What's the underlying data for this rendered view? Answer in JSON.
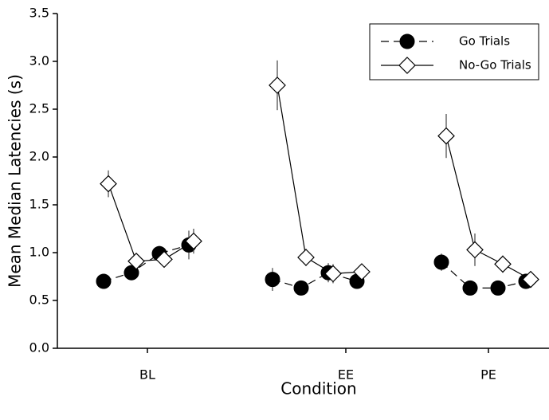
{
  "chart_data": {
    "type": "line",
    "x_label": "Condition",
    "y_label": "Mean Median Latencies (s)",
    "categories": [
      "BL",
      "EE",
      "PE"
    ],
    "ylim": [
      0,
      3.5
    ],
    "yticks": [
      {
        "value": 0,
        "label": "0.0"
      },
      {
        "value": 0.5,
        "label": "0.5"
      },
      {
        "value": 1,
        "label": "1.0"
      },
      {
        "value": 1.5,
        "label": "1.5"
      },
      {
        "value": 2,
        "label": "2.0"
      },
      {
        "value": 2.5,
        "label": "2.5"
      },
      {
        "value": 3,
        "label": "3.0"
      },
      {
        "value": 3.5,
        "label": "3.5"
      }
    ],
    "legend": "upper right",
    "series": [
      {
        "name": "Go Trials",
        "color": "#000000",
        "marker": "circle",
        "dash": true,
        "values": [
          [
            0.7,
            0.79,
            0.99,
            1.08
          ],
          [
            0.72,
            0.63,
            0.79,
            0.7
          ],
          [
            0.9,
            0.63,
            0.63,
            0.7
          ]
        ],
        "errors": [
          [
            0.07,
            0.05,
            0.08,
            0.15
          ],
          [
            0.12,
            0.04,
            0.1,
            0.04
          ],
          [
            0.09,
            0.06,
            0.06,
            0.08
          ]
        ]
      },
      {
        "name": "No-Go Trials",
        "color": "#000000",
        "marker": "diamond",
        "dash": false,
        "values": [
          [
            1.72,
            0.91,
            0.93,
            1.12
          ],
          [
            2.75,
            0.95,
            0.78,
            0.8
          ],
          [
            2.22,
            1.03,
            0.88,
            0.72
          ]
        ],
        "errors": [
          [
            0.14,
            0.05,
            0.07,
            0.13
          ],
          [
            0.26,
            0.09,
            0.1,
            0.05
          ],
          [
            0.23,
            0.17,
            0.09,
            0.05
          ]
        ]
      }
    ]
  }
}
